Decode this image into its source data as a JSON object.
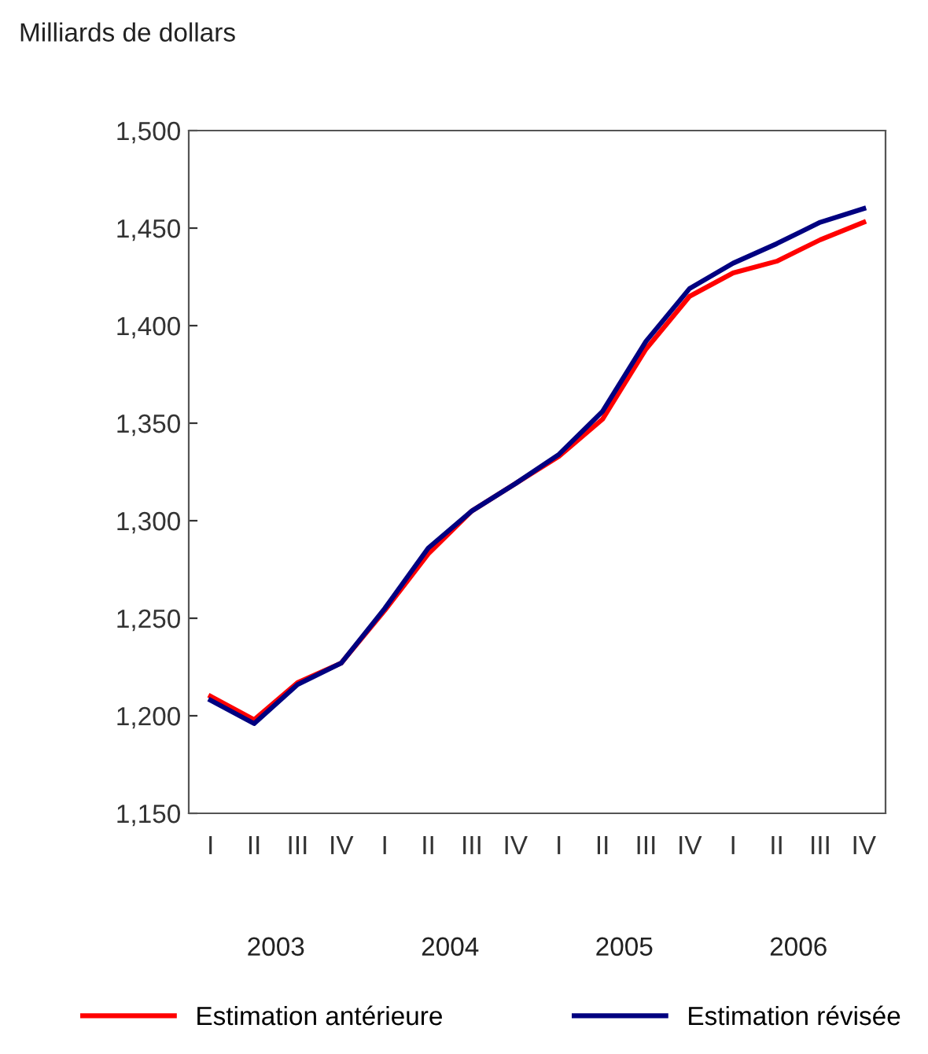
{
  "chart_data": {
    "type": "line",
    "ylabel": "Milliards de dollars",
    "categories": [
      "I",
      "II",
      "III",
      "IV",
      "I",
      "II",
      "III",
      "IV",
      "I",
      "II",
      "III",
      "IV",
      "I",
      "II",
      "III",
      "IV"
    ],
    "annotations": [
      "2003",
      "2004",
      "2005",
      "2006"
    ],
    "series": [
      {
        "name": "Estimation antérieure",
        "color": "#ff0000",
        "values": [
          1210,
          1198,
          1217,
          1227,
          1254,
          1283,
          1305,
          1319,
          1333,
          1352,
          1388,
          1415,
          1427,
          1433,
          1444,
          1453
        ]
      },
      {
        "name": "Estimation révisée",
        "color": "#000080",
        "values": [
          1208,
          1196,
          1216,
          1227,
          1255,
          1286,
          1305,
          1319,
          1334,
          1356,
          1392,
          1419,
          1432,
          1442,
          1453,
          1460
        ]
      }
    ],
    "ylim": [
      1150,
      1500
    ],
    "yticks": [
      {
        "value": 1150,
        "label": "1,150"
      },
      {
        "value": 1200,
        "label": "1,200"
      },
      {
        "value": 1250,
        "label": "1,250"
      },
      {
        "value": 1300,
        "label": "1,300"
      },
      {
        "value": 1350,
        "label": "1,350"
      },
      {
        "value": 1400,
        "label": "1,400"
      },
      {
        "value": 1450,
        "label": "1,450"
      },
      {
        "value": 1500,
        "label": "1,500"
      }
    ],
    "grid": false,
    "legend": "bottom",
    "marker": "none",
    "line_style": "solid"
  }
}
